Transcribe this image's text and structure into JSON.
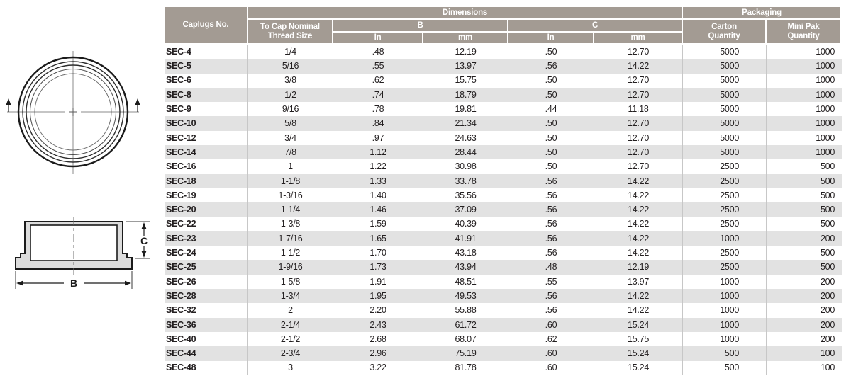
{
  "colors": {
    "header_bg": "#a39b93",
    "row_stripe": "#e2e2e2",
    "drawing_fill": "#dcdcdc",
    "text": "#231f20"
  },
  "header": {
    "caplugs_no": "Caplugs No.",
    "dimensions": "Dimensions",
    "packaging": "Packaging",
    "thread_line1": "To Cap Nominal",
    "thread_line2": "Thread Size",
    "b": "B",
    "c": "C",
    "b_in": "In",
    "b_mm": "mm",
    "c_in": "In",
    "c_mm": "mm",
    "carton_line1": "Carton",
    "carton_line2": "Quantity",
    "minipak_line1": "Mini Pak",
    "minipak_line2": "Quantity"
  },
  "drawing": {
    "dim_b_label": "B",
    "dim_c_label": "C"
  },
  "table": {
    "rows": [
      {
        "no": "SEC-4",
        "thread": "1/4",
        "b_in": ".48",
        "b_mm": "12.19",
        "c_in": ".50",
        "c_mm": "12.70",
        "carton": "5000",
        "mini_pak": "1000"
      },
      {
        "no": "SEC-5",
        "thread": "5/16",
        "b_in": ".55",
        "b_mm": "13.97",
        "c_in": ".56",
        "c_mm": "14.22",
        "carton": "5000",
        "mini_pak": "1000"
      },
      {
        "no": "SEC-6",
        "thread": "3/8",
        "b_in": ".62",
        "b_mm": "15.75",
        "c_in": ".50",
        "c_mm": "12.70",
        "carton": "5000",
        "mini_pak": "1000"
      },
      {
        "no": "SEC-8",
        "thread": "1/2",
        "b_in": ".74",
        "b_mm": "18.79",
        "c_in": ".50",
        "c_mm": "12.70",
        "carton": "5000",
        "mini_pak": "1000"
      },
      {
        "no": "SEC-9",
        "thread": "9/16",
        "b_in": ".78",
        "b_mm": "19.81",
        "c_in": ".44",
        "c_mm": "11.18",
        "carton": "5000",
        "mini_pak": "1000"
      },
      {
        "no": "SEC-10",
        "thread": "5/8",
        "b_in": ".84",
        "b_mm": "21.34",
        "c_in": ".50",
        "c_mm": "12.70",
        "carton": "5000",
        "mini_pak": "1000"
      },
      {
        "no": "SEC-12",
        "thread": "3/4",
        "b_in": ".97",
        "b_mm": "24.63",
        "c_in": ".50",
        "c_mm": "12.70",
        "carton": "5000",
        "mini_pak": "1000"
      },
      {
        "no": "SEC-14",
        "thread": "7/8",
        "b_in": "1.12",
        "b_mm": "28.44",
        "c_in": ".50",
        "c_mm": "12.70",
        "carton": "5000",
        "mini_pak": "1000"
      },
      {
        "no": "SEC-16",
        "thread": "1",
        "b_in": "1.22",
        "b_mm": "30.98",
        "c_in": ".50",
        "c_mm": "12.70",
        "carton": "2500",
        "mini_pak": "500"
      },
      {
        "no": "SEC-18",
        "thread": "1-1/8",
        "b_in": "1.33",
        "b_mm": "33.78",
        "c_in": ".56",
        "c_mm": "14.22",
        "carton": "2500",
        "mini_pak": "500"
      },
      {
        "no": "SEC-19",
        "thread": "1-3/16",
        "b_in": "1.40",
        "b_mm": "35.56",
        "c_in": ".56",
        "c_mm": "14.22",
        "carton": "2500",
        "mini_pak": "500"
      },
      {
        "no": "SEC-20",
        "thread": "1-1/4",
        "b_in": "1.46",
        "b_mm": "37.09",
        "c_in": ".56",
        "c_mm": "14.22",
        "carton": "2500",
        "mini_pak": "500"
      },
      {
        "no": "SEC-22",
        "thread": "1-3/8",
        "b_in": "1.59",
        "b_mm": "40.39",
        "c_in": ".56",
        "c_mm": "14.22",
        "carton": "2500",
        "mini_pak": "500"
      },
      {
        "no": "SEC-23",
        "thread": "1-7/16",
        "b_in": "1.65",
        "b_mm": "41.91",
        "c_in": ".56",
        "c_mm": "14.22",
        "carton": "1000",
        "mini_pak": "200"
      },
      {
        "no": "SEC-24",
        "thread": "1-1/2",
        "b_in": "1.70",
        "b_mm": "43.18",
        "c_in": ".56",
        "c_mm": "14.22",
        "carton": "2500",
        "mini_pak": "500"
      },
      {
        "no": "SEC-25",
        "thread": "1-9/16",
        "b_in": "1.73",
        "b_mm": "43.94",
        "c_in": ".48",
        "c_mm": "12.19",
        "carton": "2500",
        "mini_pak": "500"
      },
      {
        "no": "SEC-26",
        "thread": "1-5/8",
        "b_in": "1.91",
        "b_mm": "48.51",
        "c_in": ".55",
        "c_mm": "13.97",
        "carton": "1000",
        "mini_pak": "200"
      },
      {
        "no": "SEC-28",
        "thread": "1-3/4",
        "b_in": "1.95",
        "b_mm": "49.53",
        "c_in": ".56",
        "c_mm": "14.22",
        "carton": "1000",
        "mini_pak": "200"
      },
      {
        "no": "SEC-32",
        "thread": "2",
        "b_in": "2.20",
        "b_mm": "55.88",
        "c_in": ".56",
        "c_mm": "14.22",
        "carton": "1000",
        "mini_pak": "200"
      },
      {
        "no": "SEC-36",
        "thread": "2-1/4",
        "b_in": "2.43",
        "b_mm": "61.72",
        "c_in": ".60",
        "c_mm": "15.24",
        "carton": "1000",
        "mini_pak": "200"
      },
      {
        "no": "SEC-40",
        "thread": "2-1/2",
        "b_in": "2.68",
        "b_mm": "68.07",
        "c_in": ".62",
        "c_mm": "15.75",
        "carton": "1000",
        "mini_pak": "200"
      },
      {
        "no": "SEC-44",
        "thread": "2-3/4",
        "b_in": "2.96",
        "b_mm": "75.19",
        "c_in": ".60",
        "c_mm": "15.24",
        "carton": "500",
        "mini_pak": "100"
      },
      {
        "no": "SEC-48",
        "thread": "3",
        "b_in": "3.22",
        "b_mm": "81.78",
        "c_in": ".60",
        "c_mm": "15.24",
        "carton": "500",
        "mini_pak": "100"
      }
    ]
  }
}
